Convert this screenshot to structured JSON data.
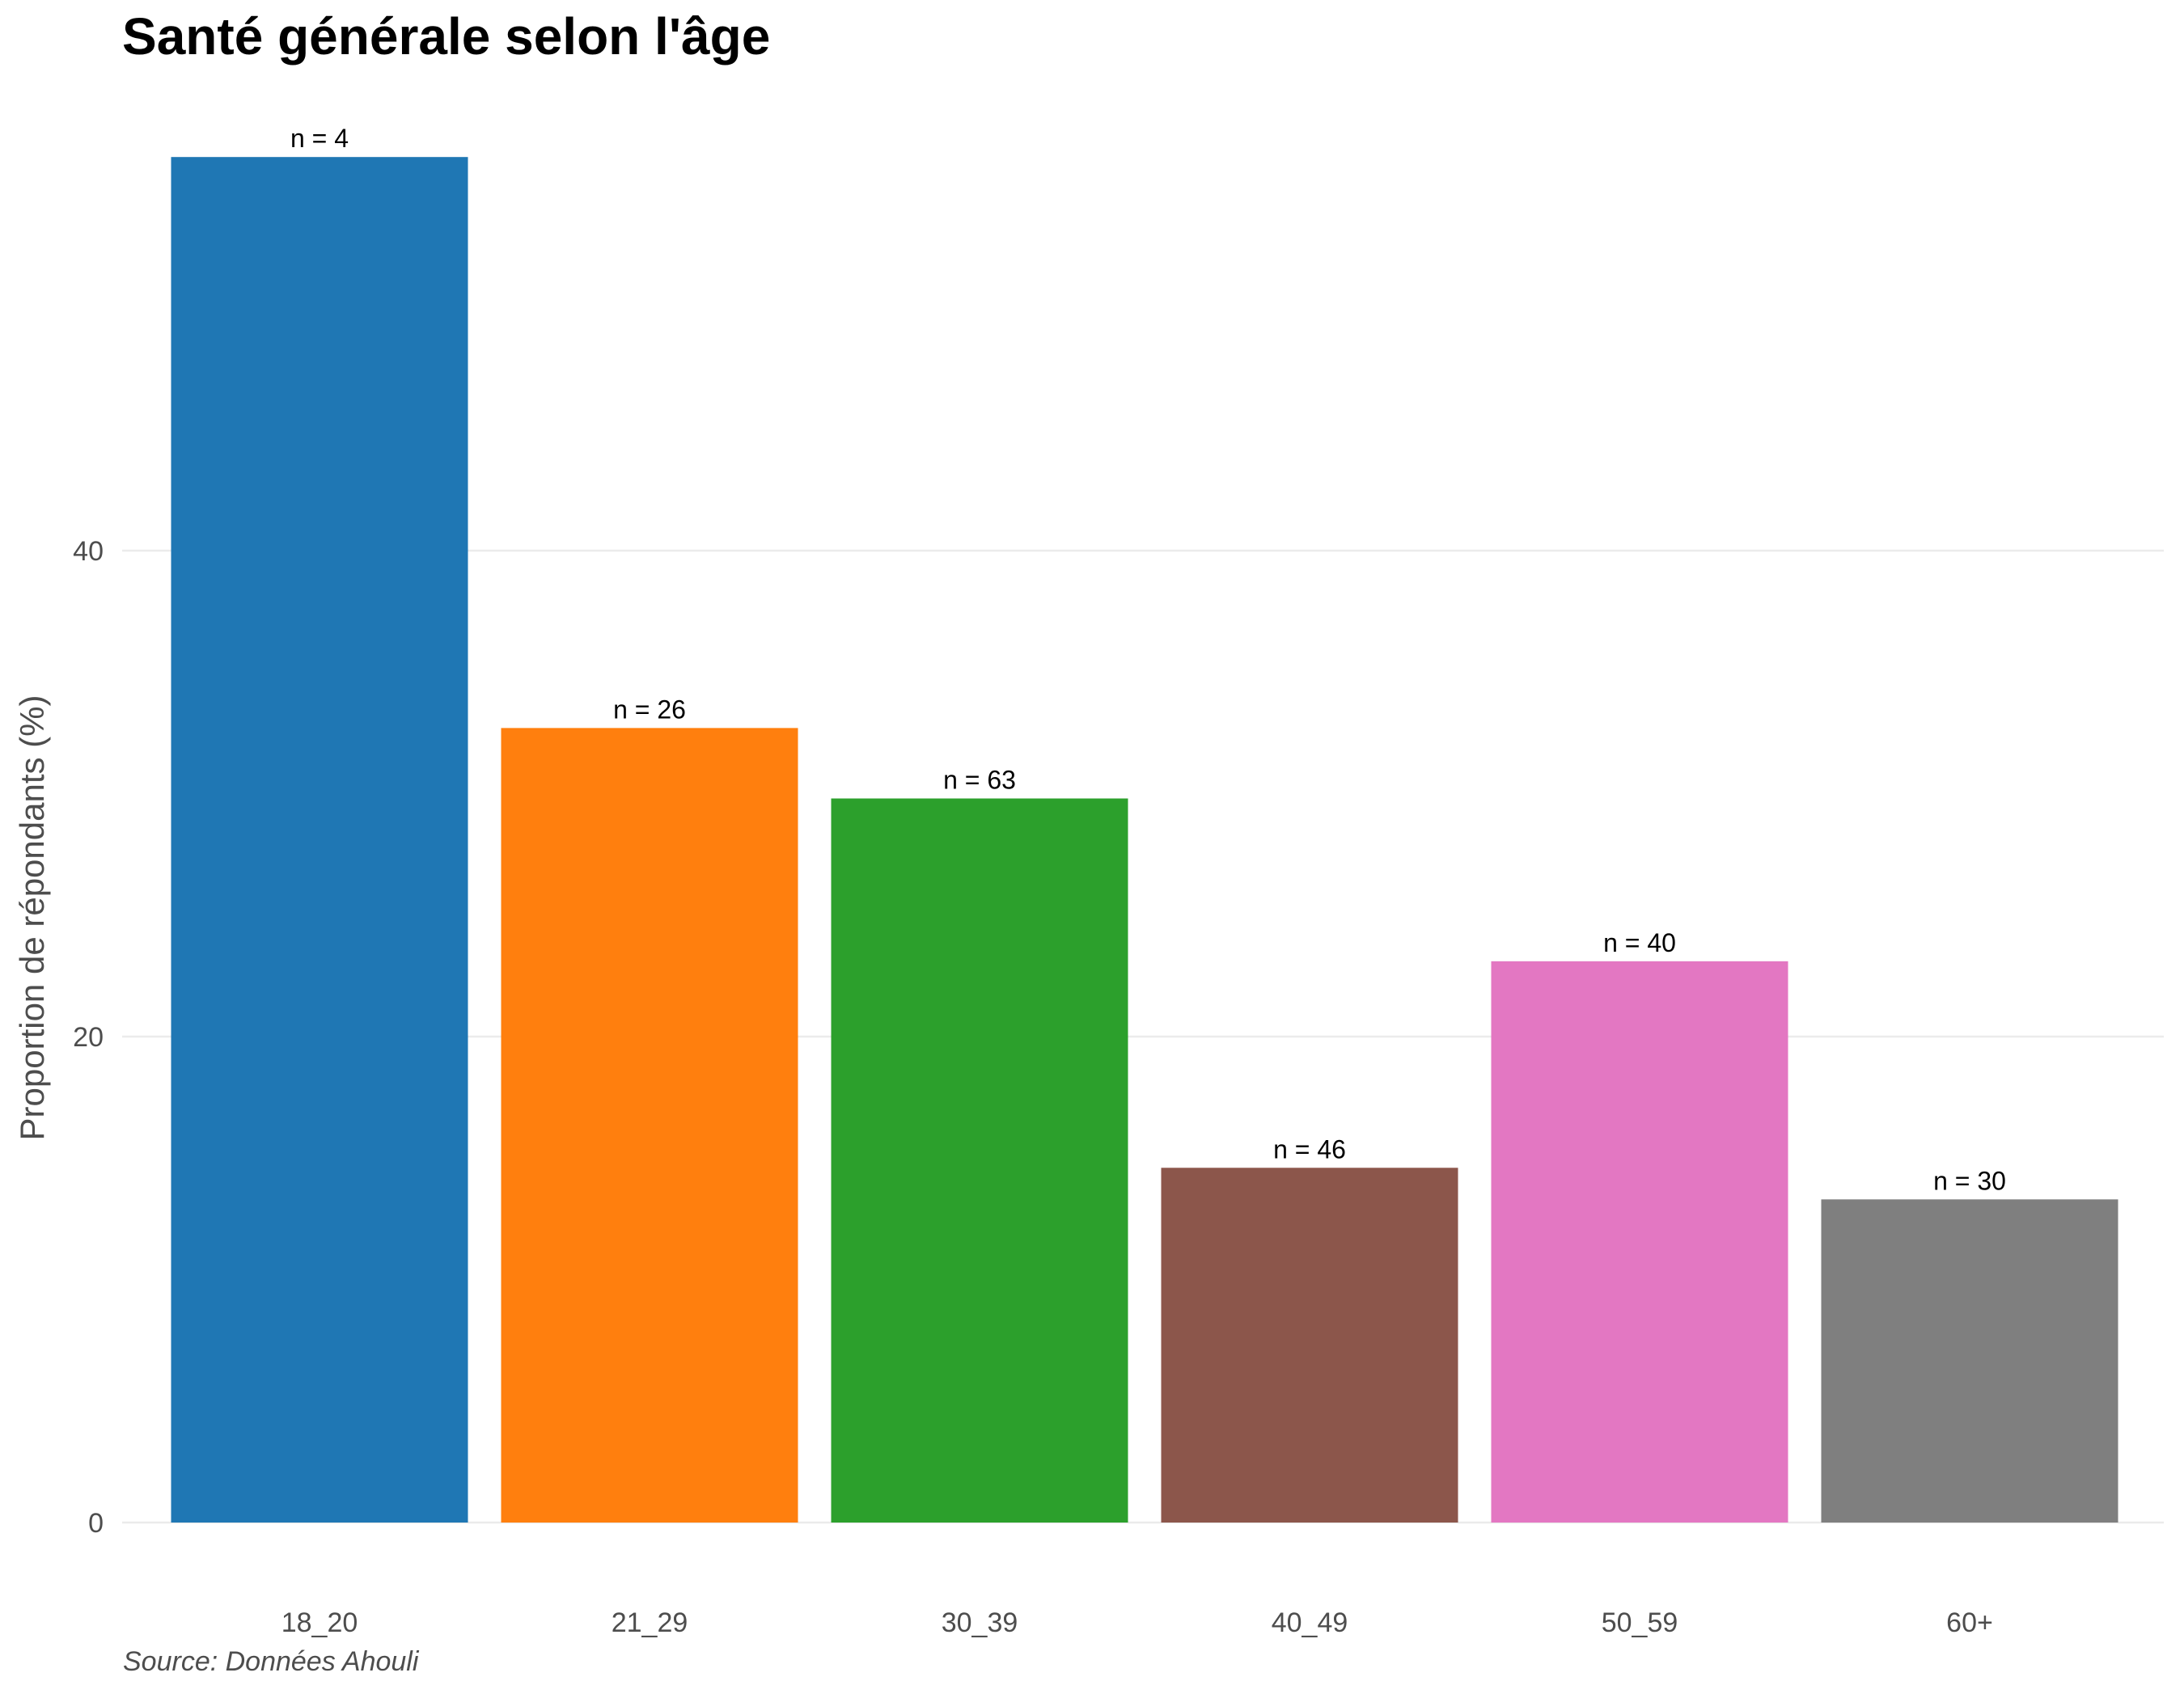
{
  "chart_data": {
    "type": "bar",
    "title": "Santé générale selon l'âge",
    "xlabel": "",
    "ylabel": "Proportion de répondants (%)",
    "caption": "Source: Données Ahouli",
    "categories": [
      "18_20",
      "21_29",
      "30_39",
      "40_49",
      "50_59",
      "60+"
    ],
    "values": [
      56.2,
      32.7,
      29.8,
      14.6,
      23.1,
      13.3
    ],
    "bar_labels": [
      "n = 4",
      "n = 26",
      "n = 63",
      "n = 46",
      "n = 40",
      "n = 30"
    ],
    "colors": [
      "#1f77b4",
      "#ff7f0e",
      "#2ca02c",
      "#8c564b",
      "#e377c2",
      "#7f7f7f"
    ],
    "ylim": [
      0,
      60
    ],
    "yticks": [
      0,
      20,
      40
    ],
    "grid": true,
    "legend": "none"
  }
}
